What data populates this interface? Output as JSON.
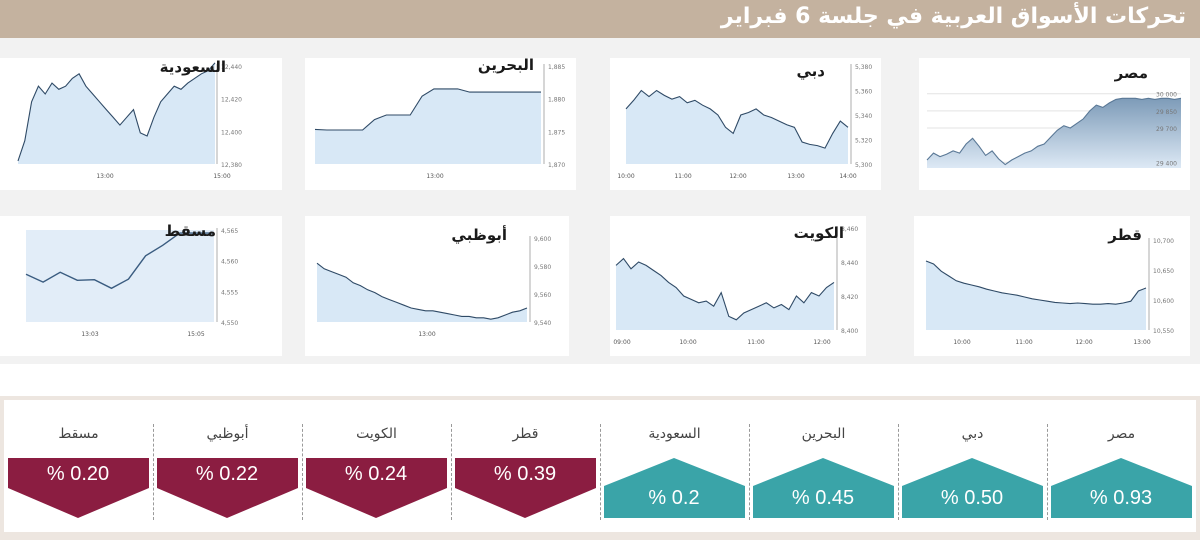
{
  "title": "تحركات الأسواق العربية في جلسة 6 فبراير",
  "colors": {
    "up": "#3aa4a8",
    "down": "#8b1d41",
    "fill": "#d8e8f6",
    "line": "#2f4a66",
    "egyptTop": "#7d9bb8",
    "egyptBottom": "#dde9f5",
    "header": "#c4b29f"
  },
  "chart_data": [
    {
      "type": "area",
      "title": "مصر",
      "yticks": [
        "30 000",
        "29 850",
        "29 700",
        "29 400"
      ],
      "xticks": [],
      "series": [
        {
          "values": [
            29420,
            29480,
            29450,
            29470,
            29500,
            29480,
            29560,
            29610,
            29540,
            29460,
            29500,
            29430,
            29380,
            29420,
            29450,
            29480,
            29500,
            29540,
            29560,
            29620,
            29680,
            29720,
            29700,
            29740,
            29780,
            29850,
            29900,
            29880,
            29920,
            29950,
            29960,
            29960,
            29960,
            29950,
            29960,
            29950,
            29960,
            29960,
            29950,
            29960
          ]
        }
      ]
    },
    {
      "type": "area",
      "title": "دبي",
      "yticks": [
        "5,380",
        "5,360",
        "5,340",
        "5,320",
        "5,300"
      ],
      "xticks": [
        "10:00",
        "11:00",
        "12:00",
        "13:00",
        "14:00"
      ],
      "series": [
        {
          "values": [
            5345,
            5352,
            5360,
            5355,
            5360,
            5356,
            5353,
            5355,
            5350,
            5352,
            5348,
            5345,
            5340,
            5330,
            5325,
            5340,
            5342,
            5345,
            5340,
            5338,
            5335,
            5332,
            5330,
            5318,
            5316,
            5315,
            5313,
            5325,
            5335,
            5330
          ]
        }
      ]
    },
    {
      "type": "area",
      "title": "البحرين",
      "yticks": [
        "1,885",
        "1,880",
        "1,875",
        "1,870"
      ],
      "xticks": [
        "13:00"
      ],
      "series": [
        {
          "values": [
            1875.3,
            1875.2,
            1875.2,
            1875.2,
            1875.2,
            1876.8,
            1877.5,
            1877.5,
            1877.5,
            1880.4,
            1881.5,
            1881.5,
            1881.5,
            1881.0,
            1881.0,
            1881.0,
            1881.0,
            1881.0,
            1881.0,
            1881.0
          ]
        }
      ]
    },
    {
      "type": "area",
      "title": "السعودية",
      "yticks": [
        "12,440",
        "12,420",
        "12,400",
        "12,380"
      ],
      "xticks": [
        "13:00",
        "15:00"
      ],
      "series": [
        {
          "values": [
            12382,
            12395,
            12420,
            12430,
            12425,
            12432,
            12428,
            12430,
            12435,
            12438,
            12430,
            12425,
            12420,
            12415,
            12410,
            12405,
            12410,
            12415,
            12400,
            12398,
            12410,
            12420,
            12425,
            12430,
            12428,
            12432,
            12435,
            12438,
            12440,
            12445
          ]
        }
      ]
    },
    {
      "type": "area",
      "title": "قطر",
      "yticks": [
        "10,700",
        "10,650",
        "10,600",
        "10,550"
      ],
      "xticks": [
        "10:00",
        "11:00",
        "12:00",
        "13:00"
      ],
      "series": [
        {
          "values": [
            10665,
            10660,
            10648,
            10640,
            10632,
            10628,
            10625,
            10622,
            10618,
            10615,
            10612,
            10610,
            10608,
            10605,
            10602,
            10600,
            10598,
            10596,
            10595,
            10594,
            10595,
            10594,
            10593,
            10593,
            10594,
            10593,
            10595,
            10598,
            10615,
            10620
          ]
        }
      ]
    },
    {
      "type": "area",
      "title": "الكويت",
      "yticks": [
        "8,460",
        "8,440",
        "8,420",
        "8,400"
      ],
      "xticks": [
        "09:00",
        "10:00",
        "11:00",
        "12:00"
      ],
      "series": [
        {
          "values": [
            8438,
            8442,
            8436,
            8440,
            8438,
            8435,
            8432,
            8428,
            8425,
            8420,
            8418,
            8416,
            8417,
            8414,
            8422,
            8408,
            8406,
            8410,
            8412,
            8414,
            8416,
            8413,
            8415,
            8412,
            8420,
            8416,
            8422,
            8420,
            8425,
            8428
          ]
        }
      ]
    },
    {
      "type": "area",
      "title": "أبوظبي",
      "yticks": [
        "9,600",
        "9,580",
        "9,560",
        "9,540"
      ],
      "xticks": [
        "13:00"
      ],
      "series": [
        {
          "values": [
            9582,
            9578,
            9576,
            9574,
            9572,
            9568,
            9566,
            9563,
            9561,
            9558,
            9556,
            9554,
            9552,
            9550,
            9549,
            9548,
            9548,
            9547,
            9546,
            9545,
            9544,
            9544,
            9543,
            9543,
            9542,
            9543,
            9545,
            9547,
            9548,
            9550
          ]
        }
      ]
    },
    {
      "type": "line",
      "title": "مسقط",
      "yticks": [
        "4,565",
        "4,560",
        "4,555",
        "4,550"
      ],
      "xticks": [
        "13:03",
        "15:05"
      ],
      "series": [
        {
          "values": [
            4557.8,
            4556.5,
            4558.1,
            4556.8,
            4556.9,
            4555.5,
            4557.0,
            4560.8,
            4562.5,
            4564.5,
            4564.5,
            4564.5
          ]
        }
      ]
    }
  ],
  "summary": [
    {
      "name": "مصر",
      "value": "% 0.93",
      "dir": "up"
    },
    {
      "name": "دبي",
      "value": "% 0.50",
      "dir": "up"
    },
    {
      "name": "البحرين",
      "value": "% 0.45",
      "dir": "up"
    },
    {
      "name": "السعودية",
      "value": "% 0.2",
      "dir": "up"
    },
    {
      "name": "قطر",
      "value": "% 0.39",
      "dir": "down"
    },
    {
      "name": "الكويت",
      "value": "% 0.24",
      "dir": "down"
    },
    {
      "name": "أبوظبي",
      "value": "% 0.22",
      "dir": "down"
    },
    {
      "name": "مسقط",
      "value": "% 0.20",
      "dir": "down"
    }
  ]
}
